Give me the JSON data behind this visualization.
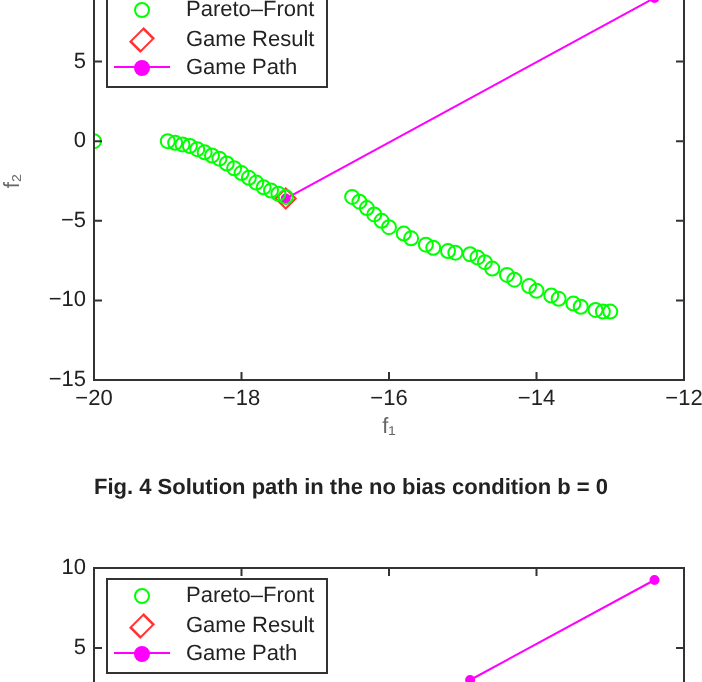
{
  "chart_data": [
    {
      "type": "scatter",
      "xlabel": "f₁",
      "ylabel": "f₂",
      "annotations": [
        "Fig. 4 Solution path in the no bias condition b = 0"
      ],
      "xlim": [
        -20,
        -12
      ],
      "xticks": [
        -20,
        -18,
        -16,
        -14,
        -12
      ],
      "ylim": [
        -15,
        10
      ],
      "yticks": [
        -15,
        -10,
        -5,
        0,
        5
      ],
      "grid": false,
      "legend": "top left",
      "series": [
        {
          "name": "Pareto–Front",
          "type": "scatter",
          "marker": "circle",
          "color": "#00ff00",
          "x": [
            -20,
            -19.0,
            -18.9,
            -18.8,
            -18.7,
            -18.6,
            -18.5,
            -18.4,
            -18.3,
            -18.2,
            -18.1,
            -18.0,
            -17.9,
            -17.8,
            -17.7,
            -17.6,
            -17.5,
            -17.4,
            -16.5,
            -16.4,
            -16.3,
            -16.2,
            -16.1,
            -16.0,
            -15.8,
            -15.7,
            -15.5,
            -15.4,
            -15.2,
            -15.1,
            -14.9,
            -14.8,
            -14.7,
            -14.6,
            -14.4,
            -14.3,
            -14.1,
            -14.0,
            -13.8,
            -13.7,
            -13.5,
            -13.4,
            -13.2,
            -13.1,
            -13.0
          ],
          "values": [
            0,
            0,
            -0.1,
            -0.2,
            -0.3,
            -0.5,
            -0.7,
            -0.9,
            -1.1,
            -1.4,
            -1.7,
            -2.0,
            -2.3,
            -2.6,
            -2.9,
            -3.1,
            -3.3,
            -3.5,
            -3.5,
            -3.8,
            -4.2,
            -4.6,
            -5.0,
            -5.4,
            -5.8,
            -6.1,
            -6.5,
            -6.7,
            -6.9,
            -7.0,
            -7.1,
            -7.3,
            -7.6,
            -8.0,
            -8.4,
            -8.7,
            -9.1,
            -9.4,
            -9.7,
            -9.9,
            -10.2,
            -10.4,
            -10.6,
            -10.7,
            -10.7
          ]
        },
        {
          "name": "Game Result",
          "type": "scatter",
          "marker": "diamond",
          "color": "#ff3333",
          "x": [
            -17.4
          ],
          "values": [
            -3.6
          ]
        },
        {
          "name": "Game Path",
          "type": "line",
          "marker": "circle",
          "color": "#ff00ff",
          "x": [
            -17.4,
            -12.4
          ],
          "values": [
            -3.6,
            9.0
          ]
        }
      ]
    },
    {
      "type": "scatter",
      "xlim": [
        -20,
        -12
      ],
      "xticks": [
        {
          "value": -20,
          "label": null
        },
        {
          "value": -18,
          "label": null
        },
        {
          "value": -16,
          "label": null
        },
        {
          "value": -14,
          "label": null
        },
        {
          "value": -12,
          "label": null
        }
      ],
      "ylim": [
        -15,
        10
      ],
      "yticks": [
        5,
        10
      ],
      "grid": false,
      "legend": "top left",
      "tick_labels": "y",
      "series": [
        {
          "name": "Pareto–Front",
          "type": "scatter",
          "marker": "circle",
          "color": "#00ff00"
        },
        {
          "name": "Game Result",
          "type": "scatter",
          "marker": "diamond",
          "color": "#ff3333"
        },
        {
          "name": "Game Path",
          "type": "line",
          "marker": "circle",
          "color": "#ff00ff",
          "x": [
            -14.9,
            -12.4
          ],
          "values": [
            3.0,
            9.25
          ]
        }
      ]
    }
  ]
}
